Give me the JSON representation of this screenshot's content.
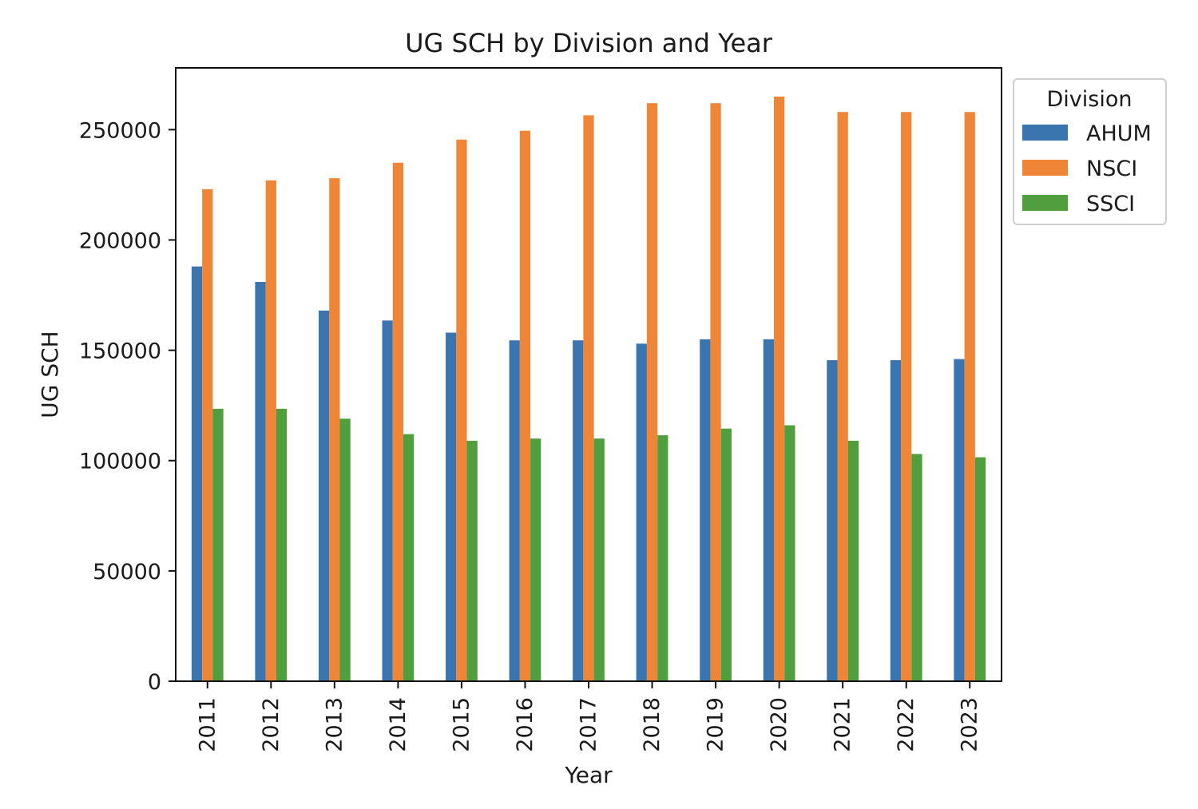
{
  "chart_data": {
    "type": "bar",
    "title": "UG SCH by Division and Year",
    "xlabel": "Year",
    "ylabel": "UG SCH",
    "ylim": [
      0,
      278000
    ],
    "yticks": [
      0,
      50000,
      100000,
      150000,
      200000,
      250000
    ],
    "ytick_labels": [
      "0",
      "50000",
      "100000",
      "150000",
      "200000",
      "250000"
    ],
    "grid": false,
    "legend_title": "Division",
    "legend_position": "outside-top-right",
    "categories": [
      "2011",
      "2012",
      "2013",
      "2014",
      "2015",
      "2016",
      "2017",
      "2018",
      "2019",
      "2020",
      "2021",
      "2022",
      "2023"
    ],
    "series": [
      {
        "name": "AHUM",
        "color": "#3a75b0",
        "values": [
          188000,
          181000,
          168000,
          163500,
          158000,
          154500,
          154500,
          153000,
          155000,
          155000,
          145500,
          145500,
          146000
        ]
      },
      {
        "name": "NSCI",
        "color": "#ef8536",
        "values": [
          223000,
          227000,
          228000,
          235000,
          245500,
          249500,
          256500,
          262000,
          262000,
          265000,
          258000,
          258000,
          258000
        ]
      },
      {
        "name": "SSCI",
        "color": "#519e3e",
        "values": [
          123500,
          123500,
          119000,
          112000,
          109000,
          110000,
          110000,
          111500,
          114500,
          116000,
          109000,
          103000,
          101500
        ]
      }
    ]
  }
}
